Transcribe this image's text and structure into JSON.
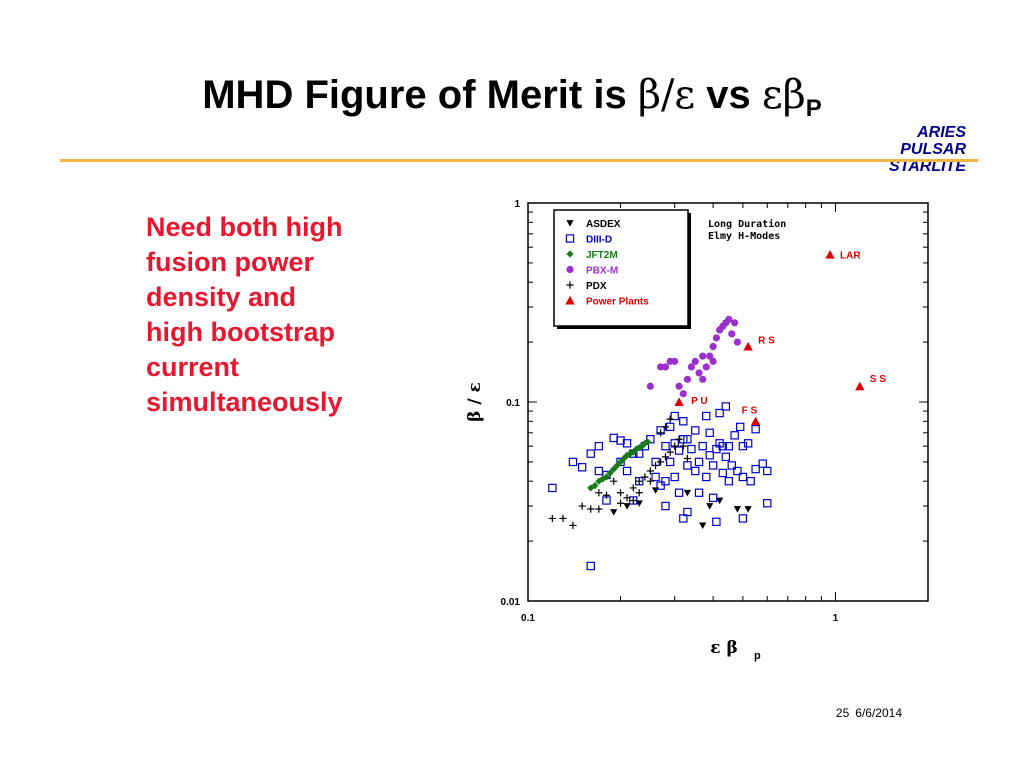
{
  "slide": {
    "title_prefix": "MHD Figure of Merit is ",
    "title_beta": "β",
    "title_slash": "/",
    "title_eps": "ε",
    "title_vs": " vs ",
    "title_epsbeta": "εβ",
    "title_sub": "P",
    "aside_lines": [
      "ARIES",
      "PULSAR",
      "STARLITE"
    ],
    "bullet_lines": [
      "Need both high",
      "fusion power",
      "density and",
      "high bootstrap",
      "current",
      "simultaneously"
    ],
    "page_number": "25",
    "date": "6/6/2014"
  },
  "colors": {
    "title": "#000000",
    "aside": "#00008b",
    "rule": "#f5b642",
    "bullet": "#e8162f",
    "asdex": "#000000",
    "diiid": "#0000cc",
    "jft2m": "#1a7a1a",
    "pbxm": "#9b30cc",
    "pdx": "#000000",
    "power_plants": "#dd0000"
  },
  "chart_data": {
    "type": "scatter",
    "xscale": "log",
    "yscale": "log",
    "xlim": [
      0.1,
      2.0
    ],
    "ylim": [
      0.01,
      1.0
    ],
    "xticks": [
      "0.1",
      "1"
    ],
    "yticks": [
      "0.01",
      "0.1",
      "1"
    ],
    "xlabel": "ε β",
    "xlabel_sub": "p",
    "ylabel": "β / ε",
    "annotation_lines": [
      "Long Duration",
      "Elmy H-Modes"
    ],
    "legend_position": "top-left",
    "series": [
      {
        "name": "ASDEX",
        "marker": "down-triangle",
        "color": "#000000",
        "points": [
          [
            0.19,
            0.028
          ],
          [
            0.21,
            0.03
          ],
          [
            0.23,
            0.031
          ],
          [
            0.37,
            0.024
          ],
          [
            0.39,
            0.03
          ],
          [
            0.42,
            0.032
          ],
          [
            0.48,
            0.029
          ],
          [
            0.52,
            0.029
          ],
          [
            0.26,
            0.036
          ],
          [
            0.33,
            0.035
          ]
        ]
      },
      {
        "name": "DIII-D",
        "marker": "open-square",
        "color": "#0000cc",
        "points": [
          [
            0.12,
            0.037
          ],
          [
            0.14,
            0.05
          ],
          [
            0.15,
            0.047
          ],
          [
            0.16,
            0.055
          ],
          [
            0.17,
            0.06
          ],
          [
            0.17,
            0.045
          ],
          [
            0.18,
            0.043
          ],
          [
            0.18,
            0.032
          ],
          [
            0.16,
            0.015
          ],
          [
            0.19,
            0.066
          ],
          [
            0.2,
            0.064
          ],
          [
            0.2,
            0.05
          ],
          [
            0.21,
            0.062
          ],
          [
            0.21,
            0.045
          ],
          [
            0.22,
            0.055
          ],
          [
            0.22,
            0.032
          ],
          [
            0.23,
            0.055
          ],
          [
            0.23,
            0.04
          ],
          [
            0.24,
            0.06
          ],
          [
            0.25,
            0.065
          ],
          [
            0.26,
            0.05
          ],
          [
            0.26,
            0.042
          ],
          [
            0.27,
            0.072
          ],
          [
            0.28,
            0.06
          ],
          [
            0.28,
            0.04
          ],
          [
            0.28,
            0.03
          ],
          [
            0.29,
            0.075
          ],
          [
            0.29,
            0.05
          ],
          [
            0.3,
            0.085
          ],
          [
            0.3,
            0.062
          ],
          [
            0.3,
            0.042
          ],
          [
            0.31,
            0.057
          ],
          [
            0.31,
            0.035
          ],
          [
            0.32,
            0.08
          ],
          [
            0.32,
            0.065
          ],
          [
            0.33,
            0.065
          ],
          [
            0.33,
            0.048
          ],
          [
            0.33,
            0.028
          ],
          [
            0.34,
            0.058
          ],
          [
            0.35,
            0.072
          ],
          [
            0.35,
            0.045
          ],
          [
            0.36,
            0.05
          ],
          [
            0.36,
            0.035
          ],
          [
            0.37,
            0.06
          ],
          [
            0.38,
            0.085
          ],
          [
            0.38,
            0.042
          ],
          [
            0.39,
            0.07
          ],
          [
            0.39,
            0.054
          ],
          [
            0.4,
            0.048
          ],
          [
            0.4,
            0.033
          ],
          [
            0.41,
            0.058
          ],
          [
            0.42,
            0.088
          ],
          [
            0.42,
            0.062
          ],
          [
            0.43,
            0.06
          ],
          [
            0.43,
            0.044
          ],
          [
            0.44,
            0.053
          ],
          [
            0.45,
            0.06
          ],
          [
            0.45,
            0.04
          ],
          [
            0.46,
            0.048
          ],
          [
            0.47,
            0.068
          ],
          [
            0.48,
            0.045
          ],
          [
            0.49,
            0.075
          ],
          [
            0.5,
            0.06
          ],
          [
            0.5,
            0.042
          ],
          [
            0.52,
            0.062
          ],
          [
            0.53,
            0.04
          ],
          [
            0.55,
            0.073
          ],
          [
            0.55,
            0.046
          ],
          [
            0.58,
            0.049
          ],
          [
            0.6,
            0.045
          ],
          [
            0.6,
            0.031
          ],
          [
            0.5,
            0.026
          ],
          [
            0.41,
            0.025
          ],
          [
            0.32,
            0.026
          ],
          [
            0.27,
            0.038
          ],
          [
            0.44,
            0.095
          ]
        ]
      },
      {
        "name": "JFT2M",
        "marker": "filled-diamond",
        "color": "#1a7a1a",
        "points": [
          [
            0.16,
            0.037
          ],
          [
            0.165,
            0.038
          ],
          [
            0.17,
            0.04
          ],
          [
            0.175,
            0.041
          ],
          [
            0.18,
            0.042
          ],
          [
            0.185,
            0.044
          ],
          [
            0.19,
            0.046
          ],
          [
            0.195,
            0.048
          ],
          [
            0.2,
            0.05
          ],
          [
            0.205,
            0.052
          ],
          [
            0.21,
            0.054
          ],
          [
            0.215,
            0.055
          ],
          [
            0.22,
            0.056
          ],
          [
            0.225,
            0.058
          ],
          [
            0.23,
            0.059
          ],
          [
            0.235,
            0.06
          ],
          [
            0.24,
            0.062
          ],
          [
            0.245,
            0.063
          ]
        ]
      },
      {
        "name": "PBX-M",
        "marker": "filled-circle",
        "color": "#9b30cc",
        "points": [
          [
            0.25,
            0.12
          ],
          [
            0.27,
            0.15
          ],
          [
            0.28,
            0.15
          ],
          [
            0.29,
            0.16
          ],
          [
            0.3,
            0.16
          ],
          [
            0.31,
            0.12
          ],
          [
            0.32,
            0.11
          ],
          [
            0.33,
            0.13
          ],
          [
            0.34,
            0.15
          ],
          [
            0.35,
            0.16
          ],
          [
            0.36,
            0.14
          ],
          [
            0.37,
            0.13
          ],
          [
            0.38,
            0.15
          ],
          [
            0.39,
            0.17
          ],
          [
            0.4,
            0.19
          ],
          [
            0.41,
            0.21
          ],
          [
            0.42,
            0.23
          ],
          [
            0.43,
            0.24
          ],
          [
            0.44,
            0.25
          ],
          [
            0.45,
            0.26
          ],
          [
            0.46,
            0.22
          ],
          [
            0.47,
            0.25
          ],
          [
            0.48,
            0.2
          ],
          [
            0.37,
            0.17
          ],
          [
            0.4,
            0.16
          ]
        ]
      },
      {
        "name": "PDX",
        "marker": "plus",
        "color": "#000000",
        "points": [
          [
            0.12,
            0.026
          ],
          [
            0.13,
            0.026
          ],
          [
            0.14,
            0.024
          ],
          [
            0.15,
            0.03
          ],
          [
            0.16,
            0.029
          ],
          [
            0.17,
            0.029
          ],
          [
            0.17,
            0.035
          ],
          [
            0.18,
            0.034
          ],
          [
            0.19,
            0.04
          ],
          [
            0.2,
            0.035
          ],
          [
            0.2,
            0.031
          ],
          [
            0.21,
            0.033
          ],
          [
            0.22,
            0.037
          ],
          [
            0.22,
            0.032
          ],
          [
            0.23,
            0.04
          ],
          [
            0.24,
            0.042
          ],
          [
            0.25,
            0.045
          ],
          [
            0.26,
            0.048
          ],
          [
            0.27,
            0.05
          ],
          [
            0.28,
            0.053
          ],
          [
            0.29,
            0.056
          ],
          [
            0.3,
            0.06
          ],
          [
            0.31,
            0.065
          ],
          [
            0.32,
            0.06
          ],
          [
            0.33,
            0.052
          ],
          [
            0.27,
            0.07
          ],
          [
            0.28,
            0.075
          ],
          [
            0.29,
            0.082
          ],
          [
            0.25,
            0.04
          ],
          [
            0.23,
            0.035
          ]
        ]
      },
      {
        "name": "Power Plants",
        "marker": "filled-triangle",
        "color": "#dd0000",
        "points": [
          [
            0.96,
            0.55
          ],
          [
            0.52,
            0.19
          ],
          [
            1.2,
            0.12
          ],
          [
            0.31,
            0.1
          ],
          [
            0.55,
            0.08
          ]
        ],
        "labels": [
          "LAR",
          "R S",
          "S S",
          "P U",
          "F S"
        ]
      }
    ]
  }
}
